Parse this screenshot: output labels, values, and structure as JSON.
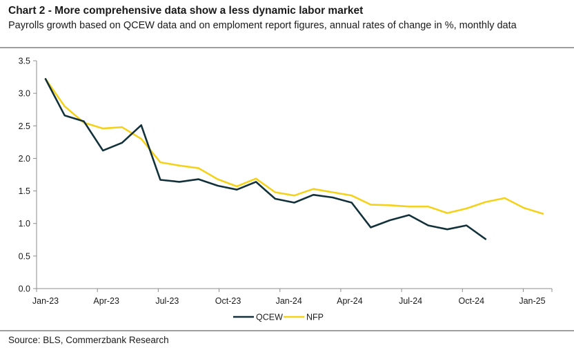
{
  "header": {
    "title": "Chart 2 - More comprehensive data show a less dynamic labor market",
    "subtitle": "Payrolls growth based on QCEW data and on emploment report figures, annual rates of change in %, monthly data"
  },
  "footer": {
    "source": "Source: BLS, Commerzbank Research"
  },
  "chart_data": {
    "type": "line",
    "title": "Chart 2 - More comprehensive data show a less dynamic labor market",
    "subtitle": "Payrolls growth based on QCEW data and on emploment report figures, annual rates of change in %, monthly data",
    "xlabel": "",
    "ylabel": "",
    "ylim": [
      0,
      3.5
    ],
    "yticks": [
      "0.0",
      "0.5",
      "1.0",
      "1.5",
      "2.0",
      "2.5",
      "3.0",
      "3.5"
    ],
    "xticks": [
      "Jan-23",
      "Apr-23",
      "Jul-23",
      "Oct-23",
      "Jan-24",
      "Apr-24",
      "Jul-24",
      "Oct-24",
      "Jan-25"
    ],
    "x": [
      "2023-01",
      "2023-02",
      "2023-03",
      "2023-04",
      "2023-05",
      "2023-06",
      "2023-07",
      "2023-08",
      "2023-09",
      "2023-10",
      "2023-11",
      "2023-12",
      "2024-01",
      "2024-02",
      "2024-03",
      "2024-04",
      "2024-05",
      "2024-06",
      "2024-07",
      "2024-08",
      "2024-09",
      "2024-10",
      "2024-11",
      "2024-12",
      "2025-01",
      "2025-02",
      "2025-03"
    ],
    "grid": false,
    "legend": "bottom-center",
    "series": [
      {
        "name": "QCEW",
        "color": "#13313a",
        "values": [
          3.22,
          2.66,
          2.57,
          2.12,
          2.24,
          2.51,
          1.67,
          1.64,
          1.68,
          1.58,
          1.52,
          1.64,
          1.38,
          1.32,
          1.44,
          1.4,
          1.32,
          0.94,
          1.05,
          1.13,
          0.97,
          0.91,
          0.97,
          0.76,
          null,
          null,
          null
        ]
      },
      {
        "name": "NFP",
        "color": "#f4d21c",
        "values": [
          3.22,
          2.8,
          2.55,
          2.46,
          2.48,
          2.3,
          1.94,
          1.89,
          1.85,
          1.68,
          1.57,
          1.69,
          1.48,
          1.43,
          1.53,
          1.48,
          1.43,
          1.29,
          1.28,
          1.26,
          1.26,
          1.16,
          1.23,
          1.33,
          1.39,
          1.24,
          1.15
        ]
      }
    ]
  }
}
